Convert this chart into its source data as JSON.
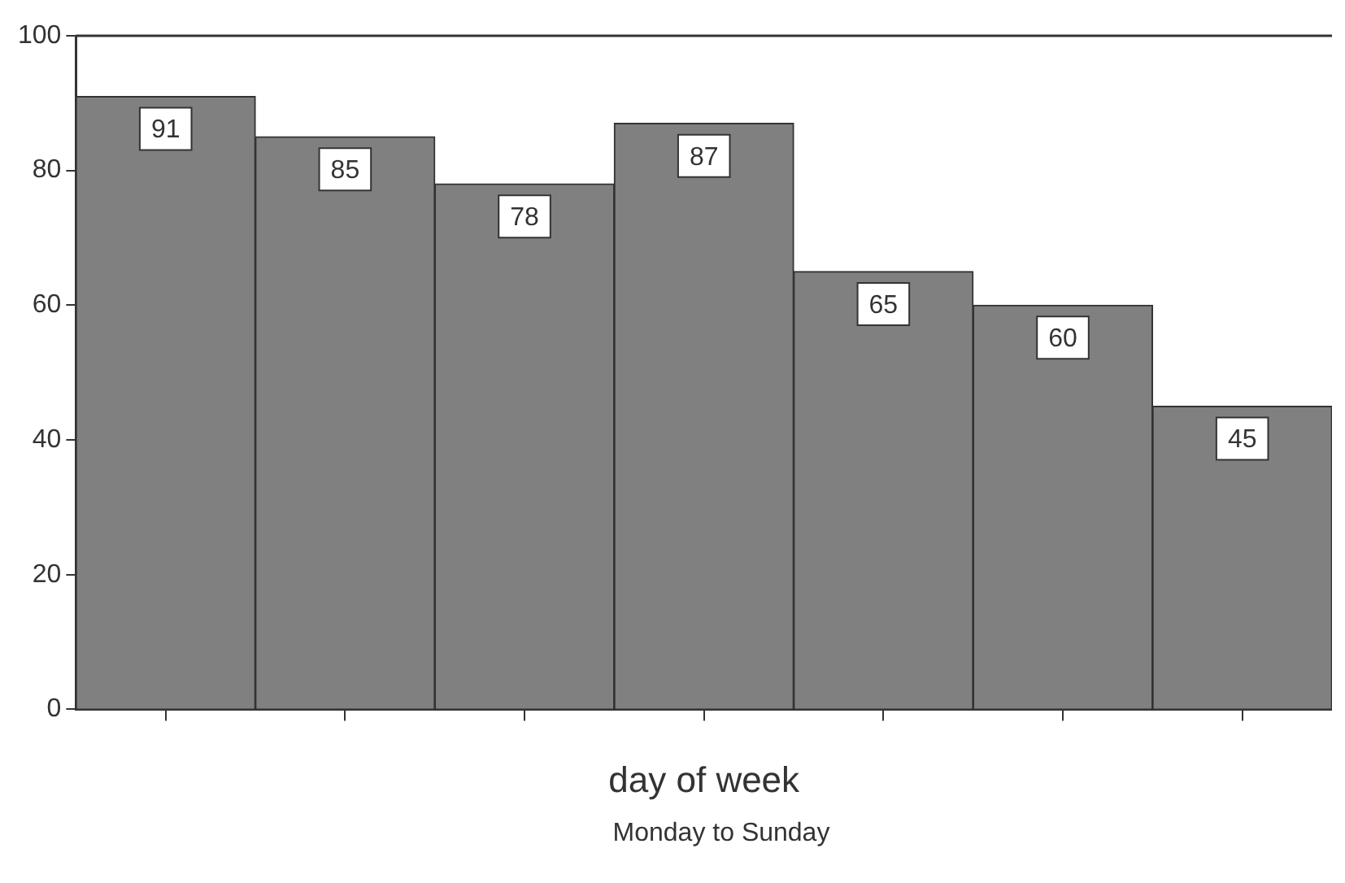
{
  "chart_data": {
    "type": "bar",
    "xlabel": "day of week",
    "annotations": [
      "Monday to Sunday"
    ],
    "categories": [
      null,
      null,
      null,
      null,
      null,
      null,
      null
    ],
    "values": [
      91,
      85,
      78,
      87,
      65,
      60,
      45
    ],
    "color": "#808080",
    "ylim": [
      0,
      100
    ],
    "yticks": [
      0,
      20,
      40,
      60,
      80,
      100
    ],
    "grid": false,
    "legend": false,
    "data_labels": true
  }
}
